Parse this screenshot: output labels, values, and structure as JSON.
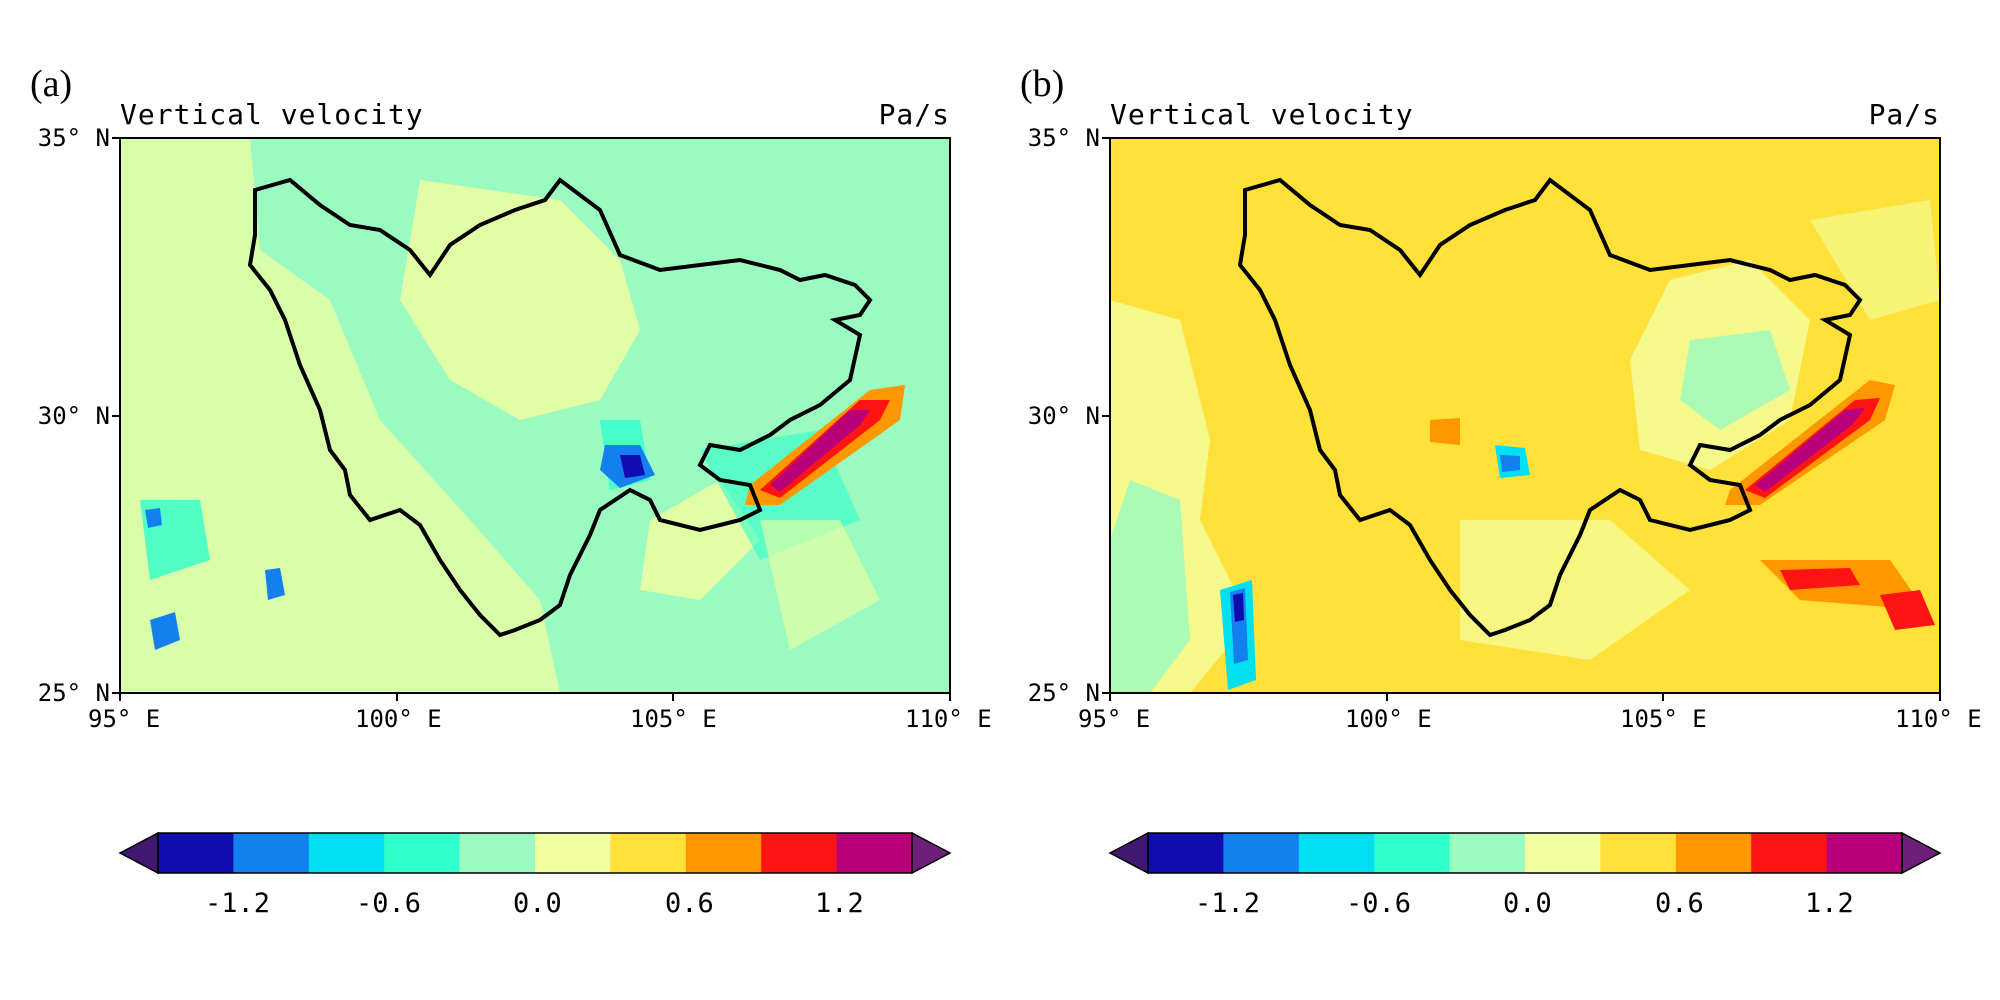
{
  "panels": [
    {
      "id": "a",
      "label": "(a)",
      "title": "Vertical velocity",
      "units": "Pa/s",
      "x_ticks": [
        "95° E",
        "100° E",
        "105° E",
        "110° E"
      ],
      "y_ticks": [
        "35° N",
        "30° N",
        "25° N"
      ],
      "extent": {
        "lon": [
          95,
          110
        ],
        "lat": [
          25,
          35
        ]
      },
      "dominant_color": "#9afac0",
      "secondary_color": "#f2ffa0"
    },
    {
      "id": "b",
      "label": "(b)",
      "title": "Vertical velocity",
      "units": "Pa/s",
      "x_ticks": [
        "95° E",
        "100° E",
        "105° E",
        "110° E"
      ],
      "y_ticks": [
        "35° N",
        "30° N",
        "25° N"
      ],
      "extent": {
        "lon": [
          95,
          110
        ],
        "lat": [
          25,
          35
        ]
      },
      "dominant_color": "#ffe13a",
      "secondary_color": "#f2ffa0"
    }
  ],
  "colorbar": {
    "colors": [
      "#401872",
      "#0f0db0",
      "#1480f0",
      "#00e0f0",
      "#30ffcc",
      "#9afac0",
      "#f2ffa0",
      "#ffe13a",
      "#ff9800",
      "#ff1414",
      "#b8007a",
      "#6e1f7a"
    ],
    "tick_labels": [
      "-1.2",
      "-0.6",
      "0.0",
      "0.6",
      "1.2"
    ],
    "tick_values": [
      -1.2,
      -0.6,
      0.0,
      0.6,
      1.2
    ]
  },
  "color_legend": {
    "outline": "#000000"
  }
}
